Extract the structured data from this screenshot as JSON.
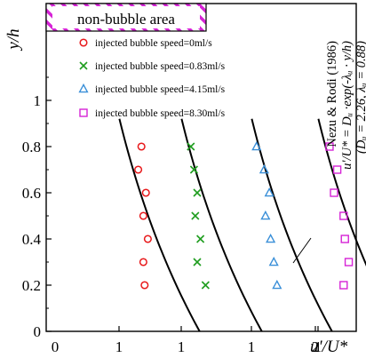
{
  "chart_data": {
    "type": "scatter",
    "title": "",
    "xlabel": "u'/U*",
    "ylabel": "y/h",
    "ylim": [
      0,
      1.2
    ],
    "yticks": [
      0,
      0.2,
      0.4,
      0.6,
      0.8,
      1
    ],
    "panels": [
      {
        "xticks": [
          "0",
          "1"
        ],
        "xlim": [
          0,
          2.3
        ]
      },
      {
        "xticks": [
          "1"
        ],
        "xlim": [
          0,
          2.3
        ]
      },
      {
        "xticks": [
          "1",
          "2"
        ],
        "xlim": [
          0,
          2.3
        ]
      },
      {
        "xticks": [
          "1",
          "2"
        ],
        "xlim": [
          0,
          2.3
        ]
      }
    ],
    "series": [
      {
        "name": "injected bubble speed=0ml/s",
        "marker": "circle",
        "color": "#e8191b",
        "points": [
          [
            1.35,
            0.8
          ],
          [
            1.3,
            0.7
          ],
          [
            1.42,
            0.6
          ],
          [
            1.38,
            0.5
          ],
          [
            1.45,
            0.4
          ],
          [
            1.38,
            0.3
          ],
          [
            1.4,
            0.2
          ]
        ]
      },
      {
        "name": "injected bubble speed=0.83ml/s",
        "marker": "x",
        "color": "#1f9d1f",
        "points": [
          [
            1.15,
            0.8
          ],
          [
            1.2,
            0.7
          ],
          [
            1.25,
            0.6
          ],
          [
            1.22,
            0.5
          ],
          [
            1.3,
            0.4
          ],
          [
            1.25,
            0.3
          ],
          [
            1.38,
            0.2
          ]
        ]
      },
      {
        "name": "injected bubble speed=4.15ml/s",
        "marker": "triangle",
        "color": "#3a8fd8",
        "points": [
          [
            1.08,
            0.8
          ],
          [
            1.2,
            0.7
          ],
          [
            1.28,
            0.6
          ],
          [
            1.22,
            0.5
          ],
          [
            1.3,
            0.4
          ],
          [
            1.35,
            0.3
          ],
          [
            1.4,
            0.2
          ]
        ]
      },
      {
        "name": "injected bubble speed=8.30ml/s",
        "marker": "square",
        "color": "#d623d6",
        "points": [
          [
            1.18,
            0.8
          ],
          [
            1.3,
            0.7
          ],
          [
            1.25,
            0.6
          ],
          [
            1.4,
            0.5
          ],
          [
            1.42,
            0.4
          ],
          [
            1.48,
            0.3
          ],
          [
            1.4,
            0.2
          ]
        ]
      }
    ],
    "curve": {
      "name": "Nezu & Rodi (1986)",
      "D_u": 2.26,
      "lambda_u": 0.88
    },
    "annotations": {
      "region_label": "non-bubble area",
      "reference": "Nezu & Rodi (1986)",
      "formula": "u'/U* = Dᵤ ·exp(-λᵤ · y/h)",
      "params": "(Dᵤ = 2.26, λᵤ = 0.88)"
    },
    "colors": {
      "hatch": "#d623d6"
    }
  }
}
